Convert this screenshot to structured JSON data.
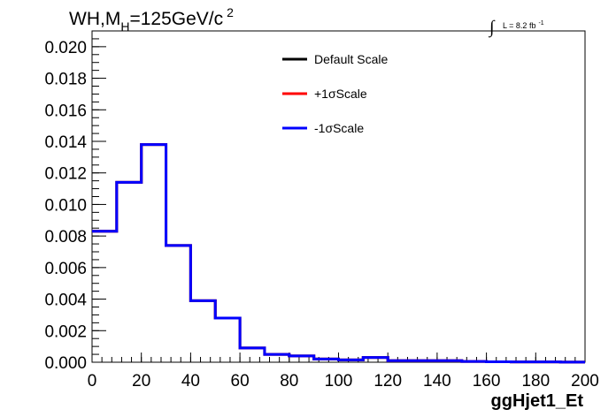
{
  "chart_data": {
    "type": "histogram",
    "title": "WH,M",
    "title_sub": "H",
    "title_rest": "=125GeV/c",
    "title_sup": "2",
    "lumi_text": "L = 8.2 fb",
    "lumi_sup": "-1",
    "lumi_symbol": "∫",
    "xlabel": "ggHjet1_Et",
    "xlim": [
      0,
      200
    ],
    "ylim": [
      0,
      0.021
    ],
    "x_ticks": [
      "0",
      "20",
      "40",
      "60",
      "80",
      "100",
      "120",
      "140",
      "160",
      "180",
      "200"
    ],
    "y_ticks": [
      "0.000",
      "0.002",
      "0.004",
      "0.006",
      "0.008",
      "0.010",
      "0.012",
      "0.014",
      "0.016",
      "0.018",
      "0.020"
    ],
    "bin_edges": [
      0,
      10,
      20,
      30,
      40,
      50,
      60,
      70,
      80,
      90,
      100,
      110,
      120,
      130,
      140,
      150,
      160,
      170,
      180,
      190,
      200
    ],
    "legend_position": "top-center",
    "series": [
      {
        "name": "Default Scale",
        "color": "#000000",
        "values": [
          0.0083,
          0.0114,
          0.0138,
          0.0074,
          0.0039,
          0.0028,
          0.0009,
          0.0005,
          0.0004,
          0.0002,
          0.00015,
          0.0003,
          0.0001,
          0.0001,
          0.0001,
          5e-05,
          3e-05,
          2e-05,
          2e-05,
          1e-05
        ]
      },
      {
        "name": "+1σScale",
        "color": "#ff0000",
        "values": [
          0.0083,
          0.0114,
          0.0138,
          0.0074,
          0.0039,
          0.0028,
          0.0009,
          0.0005,
          0.0004,
          0.0002,
          0.00015,
          0.0003,
          0.0001,
          0.0001,
          0.0001,
          5e-05,
          3e-05,
          2e-05,
          2e-05,
          1e-05
        ]
      },
      {
        "name": "-1σScale",
        "color": "#0000ff",
        "values": [
          0.0083,
          0.0114,
          0.0138,
          0.0074,
          0.0039,
          0.0028,
          0.0009,
          0.0005,
          0.0004,
          0.0002,
          0.00015,
          0.0003,
          0.0001,
          0.0001,
          0.0001,
          5e-05,
          3e-05,
          2e-05,
          2e-05,
          1e-05
        ]
      }
    ]
  }
}
